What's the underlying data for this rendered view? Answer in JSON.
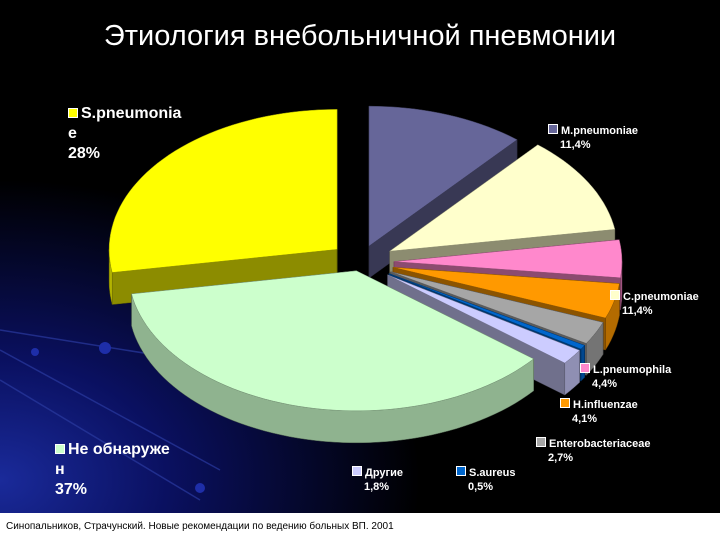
{
  "chart_data": {
    "type": "pie",
    "title": "Этиология внебольничной пневмонии",
    "categories": [
      "M.pneumoniae",
      "C.pneumoniae",
      "L.pneumophila",
      "H.influenzae",
      "Enterobacteriaceae",
      "S.aureus",
      "Другие",
      "Не обнаружен",
      "S.pneumoniae"
    ],
    "values": [
      11.4,
      11.4,
      4.4,
      4.1,
      2.7,
      0.5,
      1.8,
      37,
      28
    ],
    "value_labels": [
      "11,4%",
      "11,4%",
      "4,4%",
      "4,1%",
      "2,7%",
      "0,5%",
      "1,8%",
      "37%",
      "28%"
    ],
    "colors": [
      "#666699",
      "#ffffcc",
      "#ff88cc",
      "#ff9900",
      "#a6a6a6",
      "#0066cc",
      "#ccccff",
      "#ccffcc",
      "#ffff00"
    ],
    "note": "Синопальников, Страчунский. Новые рекомендации по ведению больных ВП. 2001"
  }
}
